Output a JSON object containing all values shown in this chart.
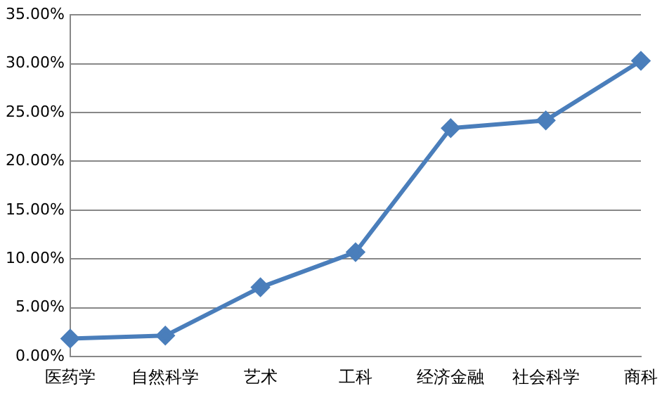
{
  "chart_data": {
    "type": "line",
    "categories": [
      "医药学",
      "自然科学",
      "艺术",
      "工科",
      "经济金融",
      "社会科学",
      "商科"
    ],
    "series": [
      {
        "color": "#4a7ebb",
        "values": [
          1.85,
          2.15,
          7.1,
          10.7,
          23.4,
          24.2,
          30.3
        ]
      }
    ],
    "ylim": [
      0,
      35
    ],
    "yticks": [
      {
        "value": 0,
        "label": "0.00%"
      },
      {
        "value": 5,
        "label": "5.00%"
      },
      {
        "value": 10,
        "label": "10.00%"
      },
      {
        "value": 15,
        "label": "15.00%"
      },
      {
        "value": 20,
        "label": "20.00%"
      },
      {
        "value": 25,
        "label": "25.00%"
      },
      {
        "value": 30,
        "label": "30.00%"
      },
      {
        "value": 35,
        "label": "35.00%"
      }
    ],
    "grid": "y",
    "legend": false,
    "marker": "diamond",
    "line_style": "solid"
  }
}
